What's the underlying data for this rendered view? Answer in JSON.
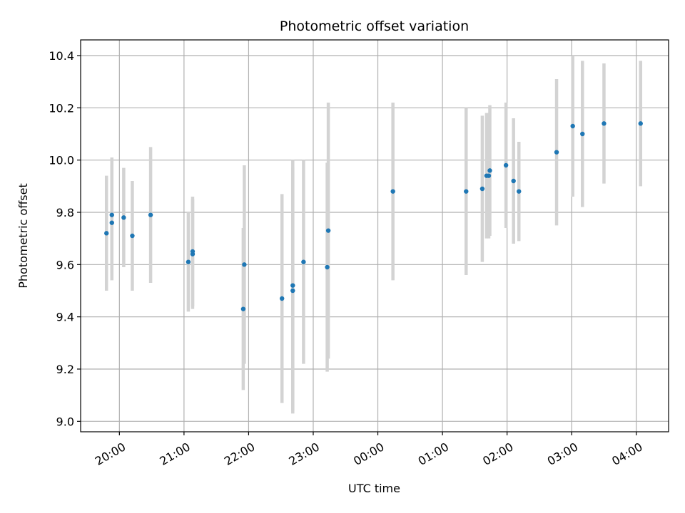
{
  "chart_data": {
    "type": "scatter",
    "title": "Photometric offset variation",
    "xlabel": "UTC time",
    "ylabel": "Photometric offset",
    "x_unit": "hours since 00:00 UTC (negative = previous day)",
    "xlim": [
      "19:24",
      "04:30"
    ],
    "ylim": [
      8.96,
      10.46
    ],
    "grid": true,
    "x_ticks": [
      "20:00",
      "21:00",
      "22:00",
      "23:00",
      "00:00",
      "01:00",
      "02:00",
      "03:00",
      "04:00"
    ],
    "y_ticks": [
      "9.0",
      "9.2",
      "9.4",
      "9.6",
      "9.8",
      "10.0",
      "10.2",
      "10.4"
    ],
    "colors": {
      "point": "#1f77b4",
      "errorbar": "#d3d3d3",
      "grid": "#b0b0b0"
    },
    "series": [
      {
        "points": [
          {
            "x": "19:48",
            "y": 9.72,
            "err": 0.22
          },
          {
            "x": "19:53",
            "y": 9.76,
            "err": 0.22
          },
          {
            "x": "19:53",
            "y": 9.79,
            "err": 0.22
          },
          {
            "x": "20:04",
            "y": 9.78,
            "err": 0.19
          },
          {
            "x": "20:12",
            "y": 9.71,
            "err": 0.21
          },
          {
            "x": "20:29",
            "y": 9.79,
            "err": 0.26
          },
          {
            "x": "21:04",
            "y": 9.61,
            "err": 0.19
          },
          {
            "x": "21:08",
            "y": 9.64,
            "err": 0.21
          },
          {
            "x": "21:08",
            "y": 9.65,
            "err": 0.21
          },
          {
            "x": "21:55",
            "y": 9.43,
            "err": 0.31
          },
          {
            "x": "21:56",
            "y": 9.6,
            "err": 0.38
          },
          {
            "x": "22:31",
            "y": 9.47,
            "err": 0.4
          },
          {
            "x": "22:41",
            "y": 9.5,
            "err": 0.47
          },
          {
            "x": "22:41",
            "y": 9.52,
            "err": 0.48
          },
          {
            "x": "22:51",
            "y": 9.61,
            "err": 0.39
          },
          {
            "x": "23:13",
            "y": 9.59,
            "err": 0.4
          },
          {
            "x": "23:14",
            "y": 9.73,
            "err": 0.49
          },
          {
            "x": "00:14",
            "y": 9.88,
            "err": 0.34
          },
          {
            "x": "01:22",
            "y": 9.88,
            "err": 0.32
          },
          {
            "x": "01:37",
            "y": 9.89,
            "err": 0.28
          },
          {
            "x": "01:41",
            "y": 9.94,
            "err": 0.24
          },
          {
            "x": "01:43",
            "y": 9.94,
            "err": 0.24
          },
          {
            "x": "01:44",
            "y": 9.96,
            "err": 0.25
          },
          {
            "x": "01:59",
            "y": 9.98,
            "err": 0.24
          },
          {
            "x": "02:06",
            "y": 9.92,
            "err": 0.24
          },
          {
            "x": "02:11",
            "y": 9.88,
            "err": 0.19
          },
          {
            "x": "02:46",
            "y": 10.03,
            "err": 0.28
          },
          {
            "x": "03:01",
            "y": 10.13,
            "err": 0.27
          },
          {
            "x": "03:10",
            "y": 10.1,
            "err": 0.28
          },
          {
            "x": "03:30",
            "y": 10.14,
            "err": 0.23
          },
          {
            "x": "04:04",
            "y": 10.14,
            "err": 0.24
          }
        ]
      }
    ]
  }
}
